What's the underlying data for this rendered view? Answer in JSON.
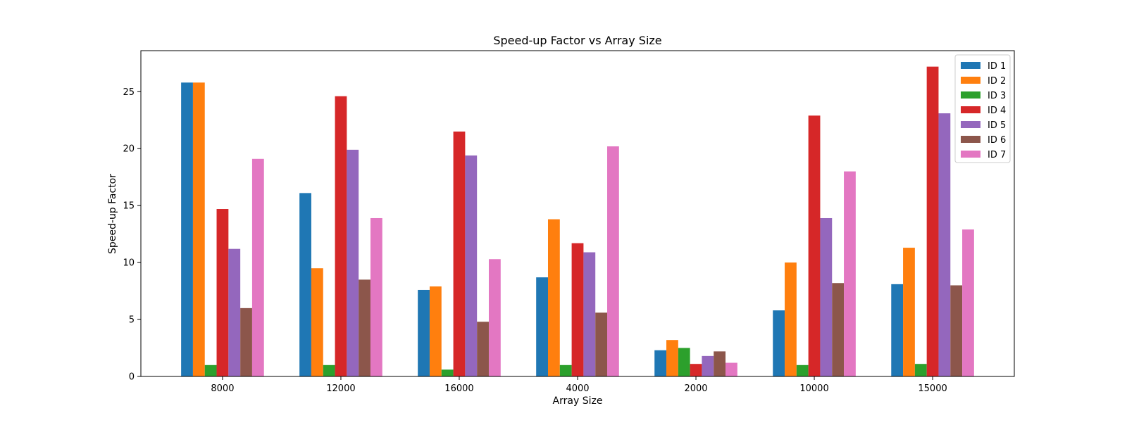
{
  "chart_data": {
    "type": "bar",
    "title": "Speed-up Factor vs Array Size",
    "xlabel": "Array Size",
    "ylabel": "Speed-up Factor",
    "categories": [
      "8000",
      "12000",
      "16000",
      "4000",
      "2000",
      "10000",
      "15000"
    ],
    "ylim": [
      0,
      28.6
    ],
    "yticks": [
      0,
      5,
      10,
      15,
      20,
      25
    ],
    "grid": false,
    "legend_position": "top-right",
    "series": [
      {
        "name": "ID 1",
        "color": "#1f77b4",
        "values": [
          25.8,
          16.1,
          7.6,
          8.7,
          2.3,
          5.8,
          8.1
        ]
      },
      {
        "name": "ID 2",
        "color": "#ff7f0e",
        "values": [
          25.8,
          9.5,
          7.9,
          13.8,
          3.2,
          10.0,
          11.3
        ]
      },
      {
        "name": "ID 3",
        "color": "#2ca02c",
        "values": [
          1.0,
          1.0,
          0.6,
          1.0,
          2.5,
          1.0,
          1.1
        ]
      },
      {
        "name": "ID 4",
        "color": "#d62728",
        "values": [
          14.7,
          24.6,
          21.5,
          11.7,
          1.1,
          22.9,
          27.2
        ]
      },
      {
        "name": "ID 5",
        "color": "#9467bd",
        "values": [
          11.2,
          19.9,
          19.4,
          10.9,
          1.8,
          13.9,
          23.1
        ]
      },
      {
        "name": "ID 6",
        "color": "#8c564b",
        "values": [
          6.0,
          8.5,
          4.8,
          5.6,
          2.2,
          8.2,
          8.0
        ]
      },
      {
        "name": "ID 7",
        "color": "#e377c2",
        "values": [
          19.1,
          13.9,
          10.3,
          20.2,
          1.2,
          18.0,
          12.9
        ]
      }
    ]
  }
}
